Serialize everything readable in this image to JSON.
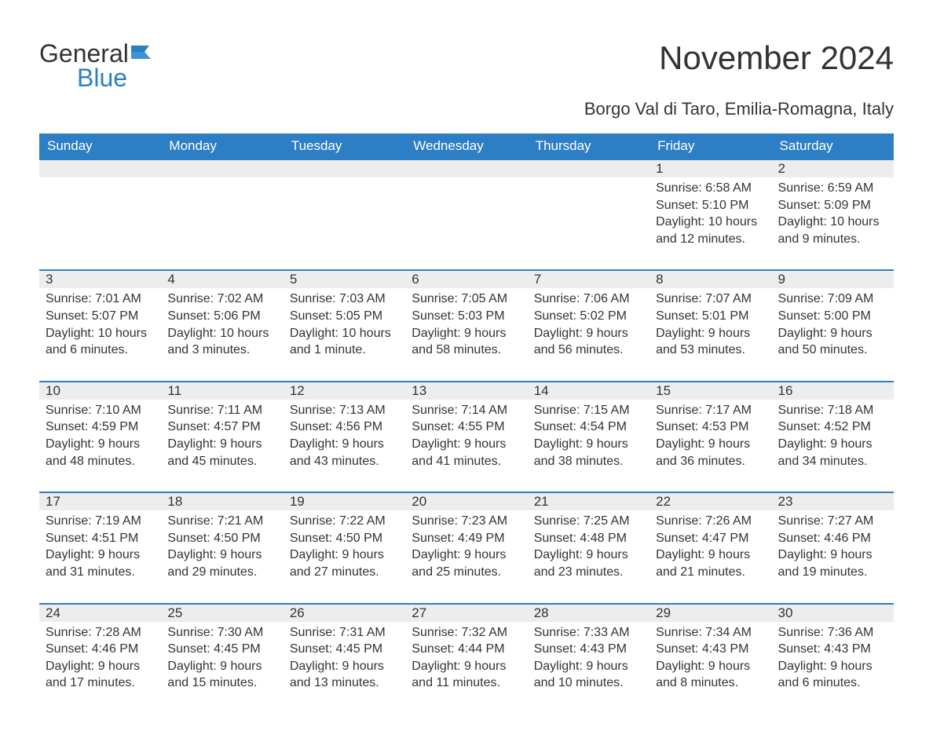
{
  "logo": {
    "text_general": "General",
    "text_blue": "Blue"
  },
  "title": "November 2024",
  "subtitle": "Borgo Val di Taro, Emilia-Romagna, Italy",
  "colors": {
    "header_bg": "#2c7fc4",
    "header_text": "#ffffff",
    "daynum_bg": "#ededed",
    "border_top": "#2c7fc4",
    "text": "#333333",
    "page_bg": "#ffffff"
  },
  "daynames": [
    "Sunday",
    "Monday",
    "Tuesday",
    "Wednesday",
    "Thursday",
    "Friday",
    "Saturday"
  ],
  "weeks": [
    [
      null,
      null,
      null,
      null,
      null,
      {
        "num": "1",
        "sunrise": "Sunrise: 6:58 AM",
        "sunset": "Sunset: 5:10 PM",
        "daylight1": "Daylight: 10 hours",
        "daylight2": "and 12 minutes."
      },
      {
        "num": "2",
        "sunrise": "Sunrise: 6:59 AM",
        "sunset": "Sunset: 5:09 PM",
        "daylight1": "Daylight: 10 hours",
        "daylight2": "and 9 minutes."
      }
    ],
    [
      {
        "num": "3",
        "sunrise": "Sunrise: 7:01 AM",
        "sunset": "Sunset: 5:07 PM",
        "daylight1": "Daylight: 10 hours",
        "daylight2": "and 6 minutes."
      },
      {
        "num": "4",
        "sunrise": "Sunrise: 7:02 AM",
        "sunset": "Sunset: 5:06 PM",
        "daylight1": "Daylight: 10 hours",
        "daylight2": "and 3 minutes."
      },
      {
        "num": "5",
        "sunrise": "Sunrise: 7:03 AM",
        "sunset": "Sunset: 5:05 PM",
        "daylight1": "Daylight: 10 hours",
        "daylight2": "and 1 minute."
      },
      {
        "num": "6",
        "sunrise": "Sunrise: 7:05 AM",
        "sunset": "Sunset: 5:03 PM",
        "daylight1": "Daylight: 9 hours",
        "daylight2": "and 58 minutes."
      },
      {
        "num": "7",
        "sunrise": "Sunrise: 7:06 AM",
        "sunset": "Sunset: 5:02 PM",
        "daylight1": "Daylight: 9 hours",
        "daylight2": "and 56 minutes."
      },
      {
        "num": "8",
        "sunrise": "Sunrise: 7:07 AM",
        "sunset": "Sunset: 5:01 PM",
        "daylight1": "Daylight: 9 hours",
        "daylight2": "and 53 minutes."
      },
      {
        "num": "9",
        "sunrise": "Sunrise: 7:09 AM",
        "sunset": "Sunset: 5:00 PM",
        "daylight1": "Daylight: 9 hours",
        "daylight2": "and 50 minutes."
      }
    ],
    [
      {
        "num": "10",
        "sunrise": "Sunrise: 7:10 AM",
        "sunset": "Sunset: 4:59 PM",
        "daylight1": "Daylight: 9 hours",
        "daylight2": "and 48 minutes."
      },
      {
        "num": "11",
        "sunrise": "Sunrise: 7:11 AM",
        "sunset": "Sunset: 4:57 PM",
        "daylight1": "Daylight: 9 hours",
        "daylight2": "and 45 minutes."
      },
      {
        "num": "12",
        "sunrise": "Sunrise: 7:13 AM",
        "sunset": "Sunset: 4:56 PM",
        "daylight1": "Daylight: 9 hours",
        "daylight2": "and 43 minutes."
      },
      {
        "num": "13",
        "sunrise": "Sunrise: 7:14 AM",
        "sunset": "Sunset: 4:55 PM",
        "daylight1": "Daylight: 9 hours",
        "daylight2": "and 41 minutes."
      },
      {
        "num": "14",
        "sunrise": "Sunrise: 7:15 AM",
        "sunset": "Sunset: 4:54 PM",
        "daylight1": "Daylight: 9 hours",
        "daylight2": "and 38 minutes."
      },
      {
        "num": "15",
        "sunrise": "Sunrise: 7:17 AM",
        "sunset": "Sunset: 4:53 PM",
        "daylight1": "Daylight: 9 hours",
        "daylight2": "and 36 minutes."
      },
      {
        "num": "16",
        "sunrise": "Sunrise: 7:18 AM",
        "sunset": "Sunset: 4:52 PM",
        "daylight1": "Daylight: 9 hours",
        "daylight2": "and 34 minutes."
      }
    ],
    [
      {
        "num": "17",
        "sunrise": "Sunrise: 7:19 AM",
        "sunset": "Sunset: 4:51 PM",
        "daylight1": "Daylight: 9 hours",
        "daylight2": "and 31 minutes."
      },
      {
        "num": "18",
        "sunrise": "Sunrise: 7:21 AM",
        "sunset": "Sunset: 4:50 PM",
        "daylight1": "Daylight: 9 hours",
        "daylight2": "and 29 minutes."
      },
      {
        "num": "19",
        "sunrise": "Sunrise: 7:22 AM",
        "sunset": "Sunset: 4:50 PM",
        "daylight1": "Daylight: 9 hours",
        "daylight2": "and 27 minutes."
      },
      {
        "num": "20",
        "sunrise": "Sunrise: 7:23 AM",
        "sunset": "Sunset: 4:49 PM",
        "daylight1": "Daylight: 9 hours",
        "daylight2": "and 25 minutes."
      },
      {
        "num": "21",
        "sunrise": "Sunrise: 7:25 AM",
        "sunset": "Sunset: 4:48 PM",
        "daylight1": "Daylight: 9 hours",
        "daylight2": "and 23 minutes."
      },
      {
        "num": "22",
        "sunrise": "Sunrise: 7:26 AM",
        "sunset": "Sunset: 4:47 PM",
        "daylight1": "Daylight: 9 hours",
        "daylight2": "and 21 minutes."
      },
      {
        "num": "23",
        "sunrise": "Sunrise: 7:27 AM",
        "sunset": "Sunset: 4:46 PM",
        "daylight1": "Daylight: 9 hours",
        "daylight2": "and 19 minutes."
      }
    ],
    [
      {
        "num": "24",
        "sunrise": "Sunrise: 7:28 AM",
        "sunset": "Sunset: 4:46 PM",
        "daylight1": "Daylight: 9 hours",
        "daylight2": "and 17 minutes."
      },
      {
        "num": "25",
        "sunrise": "Sunrise: 7:30 AM",
        "sunset": "Sunset: 4:45 PM",
        "daylight1": "Daylight: 9 hours",
        "daylight2": "and 15 minutes."
      },
      {
        "num": "26",
        "sunrise": "Sunrise: 7:31 AM",
        "sunset": "Sunset: 4:45 PM",
        "daylight1": "Daylight: 9 hours",
        "daylight2": "and 13 minutes."
      },
      {
        "num": "27",
        "sunrise": "Sunrise: 7:32 AM",
        "sunset": "Sunset: 4:44 PM",
        "daylight1": "Daylight: 9 hours",
        "daylight2": "and 11 minutes."
      },
      {
        "num": "28",
        "sunrise": "Sunrise: 7:33 AM",
        "sunset": "Sunset: 4:43 PM",
        "daylight1": "Daylight: 9 hours",
        "daylight2": "and 10 minutes."
      },
      {
        "num": "29",
        "sunrise": "Sunrise: 7:34 AM",
        "sunset": "Sunset: 4:43 PM",
        "daylight1": "Daylight: 9 hours",
        "daylight2": "and 8 minutes."
      },
      {
        "num": "30",
        "sunrise": "Sunrise: 7:36 AM",
        "sunset": "Sunset: 4:43 PM",
        "daylight1": "Daylight: 9 hours",
        "daylight2": "and 6 minutes."
      }
    ]
  ]
}
